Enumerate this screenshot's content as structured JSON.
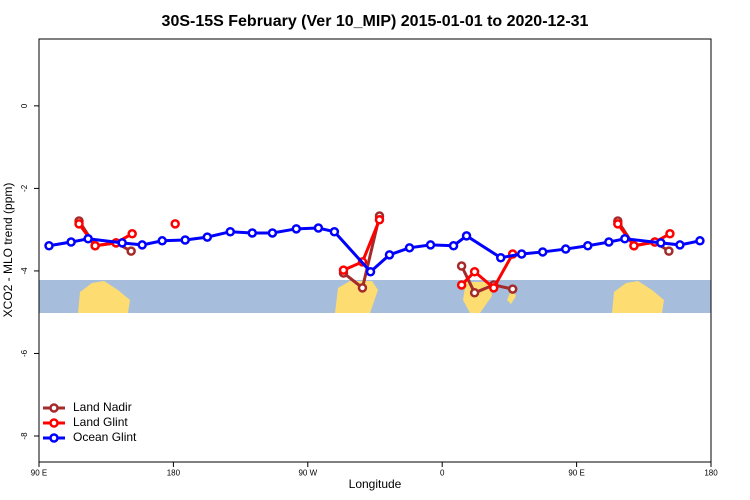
{
  "chart_data": {
    "type": "line",
    "title": "30S-15S February (Ver 10_MIP)   2015-01-01 to 2020-12-31",
    "x_label": "Longitude",
    "y_label": "XCO2 - MLO trend (ppm)",
    "xlim": [
      90,
      540
    ],
    "ylim": [
      -8.63,
      1.62
    ],
    "xticks": [
      {
        "value": 90,
        "label": "90 E"
      },
      {
        "value": 180,
        "label": "180"
      },
      {
        "value": 270,
        "label": "90 W"
      },
      {
        "value": 360,
        "label": "0"
      },
      {
        "value": 450,
        "label": "90 E"
      },
      {
        "value": 540,
        "label": "180"
      }
    ],
    "yticks": [
      0,
      -2,
      -4,
      -6,
      -8
    ],
    "legend": "bottom-left",
    "series": [
      {
        "name": "Land Nadir",
        "color": "#a52a2a",
        "x": [
          116.8,
          127.6,
          141.6,
          151.7,
          null,
          293.9,
          306.6,
          318,
          null,
          373,
          381.7,
          394.5,
          407.2,
          null,
          477.6,
          488.4,
          502.4,
          511.8
        ],
        "values": [
          -2.79,
          -3.39,
          -3.32,
          -3.52,
          null,
          -4.05,
          -4.41,
          -2.67,
          null,
          -3.88,
          -4.53,
          -4.34,
          -4.44,
          null,
          -2.79,
          -3.39,
          -3.3,
          -3.52
        ]
      },
      {
        "name": "Land Glint",
        "color": "#ff0000",
        "x": [
          116.8,
          127.6,
          141.6,
          152.4,
          null,
          181.2,
          null,
          293.9,
          306.6,
          318,
          null,
          373,
          381.7,
          394.5,
          407.2,
          null,
          477.6,
          488.4,
          502.4,
          512.5
        ],
        "values": [
          -2.86,
          -3.39,
          -3.32,
          -3.1,
          null,
          -2.86,
          null,
          -3.98,
          -3.78,
          -2.76,
          null,
          -4.34,
          -4.02,
          -4.41,
          -3.59,
          null,
          -2.86,
          -3.39,
          -3.3,
          -3.1
        ]
      },
      {
        "name": "Ocean Glint",
        "color": "#0000ff",
        "x": [
          96.7,
          111.5,
          122.9,
          145.7,
          159.1,
          172.5,
          187.9,
          202.7,
          218.1,
          232.8,
          246.3,
          262.3,
          277.1,
          287.8,
          312,
          324.7,
          338.1,
          352.2,
          367.6,
          376.3,
          399.2,
          413.2,
          427.3,
          442.7,
          457.5,
          471.6,
          482.3,
          506.4,
          519.2,
          532.6
        ],
        "values": [
          -3.39,
          -3.3,
          -3.22,
          -3.32,
          -3.37,
          -3.27,
          -3.25,
          -3.18,
          -3.05,
          -3.08,
          -3.08,
          -2.98,
          -2.96,
          -3.05,
          -4.02,
          -3.61,
          -3.44,
          -3.37,
          -3.39,
          -3.15,
          -3.68,
          -3.59,
          -3.54,
          -3.47,
          -3.39,
          -3.3,
          -3.22,
          -3.32,
          -3.37,
          -3.27
        ]
      }
    ]
  }
}
